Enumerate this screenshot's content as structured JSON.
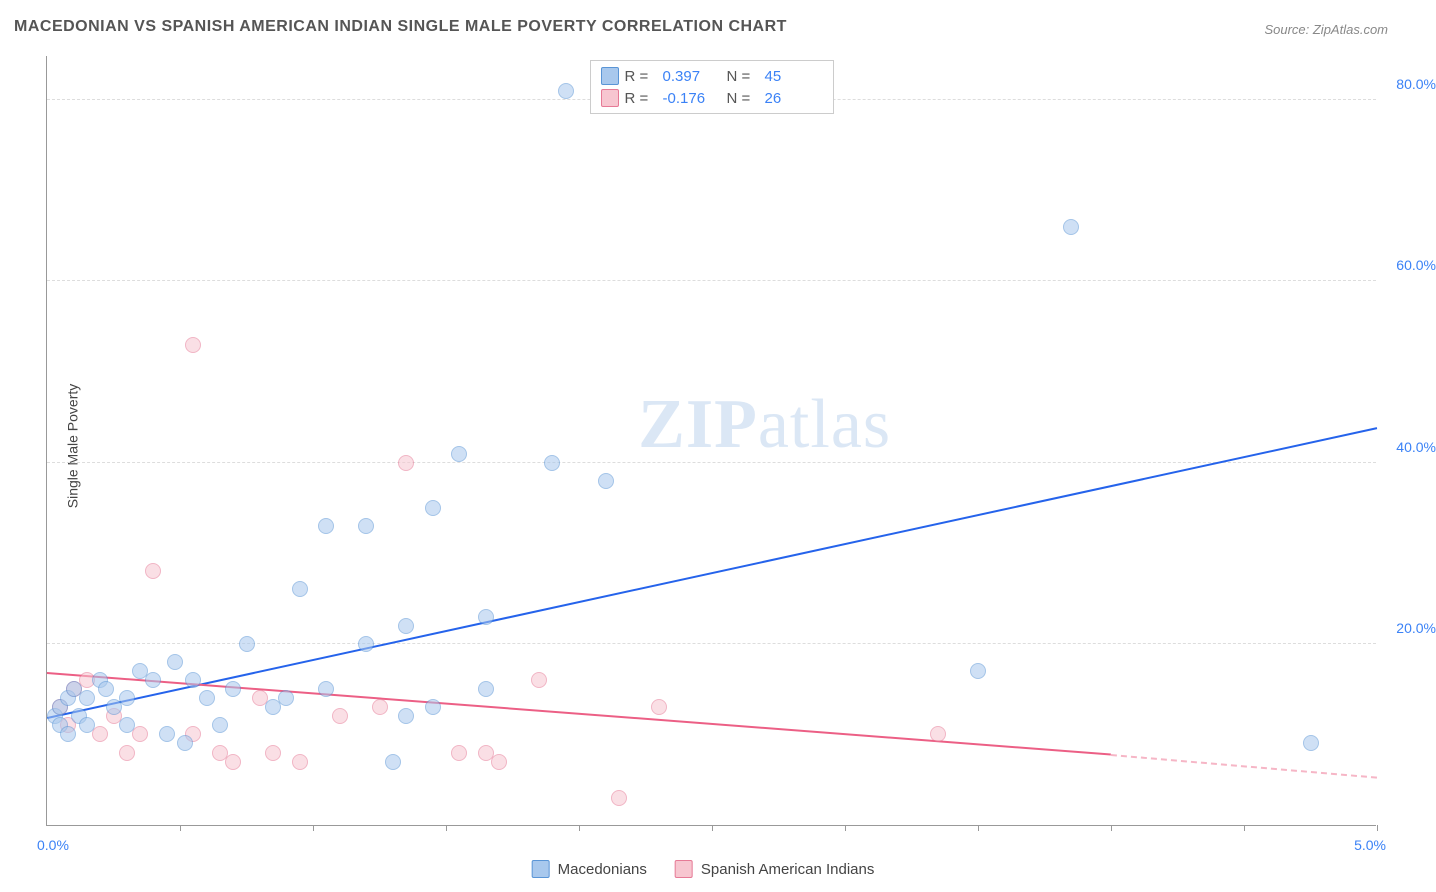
{
  "title": "MACEDONIAN VS SPANISH AMERICAN INDIAN SINGLE MALE POVERTY CORRELATION CHART",
  "source": "Source: ZipAtlas.com",
  "ylabel": "Single Male Poverty",
  "watermark_bold": "ZIP",
  "watermark_rest": "atlas",
  "chart": {
    "type": "scatter",
    "xlim": [
      0,
      5
    ],
    "ylim": [
      0,
      85
    ],
    "x_min_label": "0.0%",
    "x_max_label": "5.0%",
    "xtick_positions": [
      0.5,
      1.0,
      1.5,
      2.0,
      2.5,
      3.0,
      3.5,
      4.0,
      4.5,
      5.0
    ],
    "ytick_positions": [
      20,
      40,
      60,
      80
    ],
    "ytick_labels": [
      "20.0%",
      "40.0%",
      "60.0%",
      "80.0%"
    ],
    "grid_color": "#dddddd",
    "background_color": "#ffffff",
    "axis_color": "#999999",
    "marker_size": 16,
    "series": [
      {
        "name": "Macedonians",
        "color_fill": "#a8c8ed",
        "color_stroke": "#5a95d6",
        "r": "0.397",
        "n": "45",
        "trend": {
          "x0": 0.0,
          "y0": 12.0,
          "x1": 5.0,
          "y1": 44.0,
          "color": "#2563eb",
          "width": 2.5
        },
        "points": [
          {
            "x": 0.03,
            "y": 12
          },
          {
            "x": 0.05,
            "y": 13
          },
          {
            "x": 0.05,
            "y": 11
          },
          {
            "x": 0.08,
            "y": 14
          },
          {
            "x": 0.08,
            "y": 10
          },
          {
            "x": 0.1,
            "y": 15
          },
          {
            "x": 0.12,
            "y": 12
          },
          {
            "x": 0.15,
            "y": 11
          },
          {
            "x": 0.15,
            "y": 14
          },
          {
            "x": 0.2,
            "y": 16
          },
          {
            "x": 0.22,
            "y": 15
          },
          {
            "x": 0.25,
            "y": 13
          },
          {
            "x": 0.3,
            "y": 14
          },
          {
            "x": 0.3,
            "y": 11
          },
          {
            "x": 0.35,
            "y": 17
          },
          {
            "x": 0.4,
            "y": 16
          },
          {
            "x": 0.45,
            "y": 10
          },
          {
            "x": 0.48,
            "y": 18
          },
          {
            "x": 0.55,
            "y": 16
          },
          {
            "x": 0.6,
            "y": 14
          },
          {
            "x": 0.65,
            "y": 11
          },
          {
            "x": 0.7,
            "y": 15
          },
          {
            "x": 0.85,
            "y": 13
          },
          {
            "x": 0.9,
            "y": 14
          },
          {
            "x": 0.95,
            "y": 26
          },
          {
            "x": 1.05,
            "y": 33
          },
          {
            "x": 1.05,
            "y": 15
          },
          {
            "x": 1.2,
            "y": 33
          },
          {
            "x": 1.2,
            "y": 20
          },
          {
            "x": 1.3,
            "y": 7
          },
          {
            "x": 1.35,
            "y": 22
          },
          {
            "x": 1.35,
            "y": 12
          },
          {
            "x": 1.45,
            "y": 35
          },
          {
            "x": 1.45,
            "y": 13
          },
          {
            "x": 1.55,
            "y": 41
          },
          {
            "x": 1.65,
            "y": 23
          },
          {
            "x": 1.65,
            "y": 15
          },
          {
            "x": 1.9,
            "y": 40
          },
          {
            "x": 1.95,
            "y": 81
          },
          {
            "x": 2.1,
            "y": 38
          },
          {
            "x": 3.5,
            "y": 17
          },
          {
            "x": 3.85,
            "y": 66
          },
          {
            "x": 4.75,
            "y": 9
          },
          {
            "x": 0.52,
            "y": 9
          },
          {
            "x": 0.75,
            "y": 20
          }
        ]
      },
      {
        "name": "Spanish American Indians",
        "color_fill": "#f7c6d0",
        "color_stroke": "#e67a96",
        "r": "-0.176",
        "n": "26",
        "trend_solid": {
          "x0": 0.0,
          "y0": 17.0,
          "x1": 4.0,
          "y1": 8.0,
          "color": "#ec5f85",
          "width": 2.5
        },
        "trend_dash": {
          "x0": 4.0,
          "y0": 8.0,
          "x1": 5.0,
          "y1": 5.5,
          "color": "#f6b6c6",
          "width": 2
        },
        "points": [
          {
            "x": 0.05,
            "y": 13
          },
          {
            "x": 0.08,
            "y": 11
          },
          {
            "x": 0.1,
            "y": 15
          },
          {
            "x": 0.15,
            "y": 16
          },
          {
            "x": 0.2,
            "y": 10
          },
          {
            "x": 0.25,
            "y": 12
          },
          {
            "x": 0.3,
            "y": 8
          },
          {
            "x": 0.35,
            "y": 10
          },
          {
            "x": 0.4,
            "y": 28
          },
          {
            "x": 0.55,
            "y": 53
          },
          {
            "x": 0.55,
            "y": 10
          },
          {
            "x": 0.65,
            "y": 8
          },
          {
            "x": 0.7,
            "y": 7
          },
          {
            "x": 0.8,
            "y": 14
          },
          {
            "x": 0.85,
            "y": 8
          },
          {
            "x": 0.95,
            "y": 7
          },
          {
            "x": 1.1,
            "y": 12
          },
          {
            "x": 1.25,
            "y": 13
          },
          {
            "x": 1.35,
            "y": 40
          },
          {
            "x": 1.55,
            "y": 8
          },
          {
            "x": 1.65,
            "y": 8
          },
          {
            "x": 1.7,
            "y": 7
          },
          {
            "x": 1.85,
            "y": 16
          },
          {
            "x": 2.15,
            "y": 3
          },
          {
            "x": 2.3,
            "y": 13
          },
          {
            "x": 3.35,
            "y": 10
          }
        ]
      }
    ]
  },
  "legend_top": {
    "r_label": "R  =",
    "n_label": "N  ="
  },
  "legend_bottom": {
    "series1": "Macedonians",
    "series2": "Spanish American Indians"
  }
}
